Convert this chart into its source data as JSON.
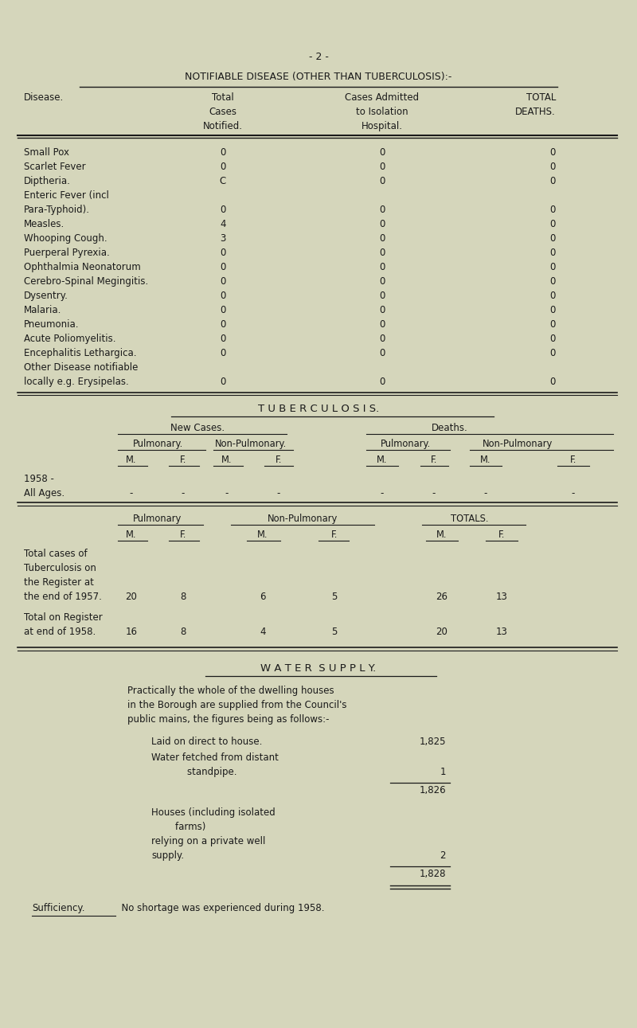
{
  "bg_color": "#d5d6bb",
  "text_color": "#1a1a1a",
  "page_num": "- 2 -",
  "section1_title": "NOTIFIABLE DISEASE (OTHER THAN TUBERCULOSIS):-",
  "diseases": [
    [
      "Small Pox",
      "0",
      "0",
      "0"
    ],
    [
      "Scarlet Fever",
      "0",
      "0",
      "0"
    ],
    [
      "Diptheria.",
      "C",
      "0",
      "0"
    ],
    [
      "Enteric Fever (incl",
      "",
      "",
      ""
    ],
    [
      "Para-Typhoid).",
      "0",
      "0",
      "0"
    ],
    [
      "Measles.",
      "4",
      "0",
      "0"
    ],
    [
      "Whooping Cough.",
      "3",
      "0",
      "0"
    ],
    [
      "Puerperal Pyrexia.",
      "0",
      "0",
      "0"
    ],
    [
      "Ophthalmia Neonatorum",
      "0",
      "0",
      "0"
    ],
    [
      "Cerebro-Spinal Megingitis.",
      "0",
      "0",
      "0"
    ],
    [
      "Dysentry.",
      "0",
      "0",
      "0"
    ],
    [
      "Malaria.",
      "0",
      "0",
      "0"
    ],
    [
      "Pneumonia.",
      "0",
      "0",
      "0"
    ],
    [
      "Acute Poliomyelitis.",
      "0",
      "0",
      "0"
    ],
    [
      "Encephalitis Lethargica.",
      "0",
      "0",
      "0"
    ],
    [
      "Other Disease notifiable",
      "",
      "",
      ""
    ],
    [
      "locally e.g. Erysipelas.",
      "0",
      "0",
      "0"
    ]
  ],
  "section2_title": "T U B E R C U L O S I S.",
  "tb_reg_row1_label_lines": [
    "Total cases of",
    "Tuberculosis on",
    "the Register at",
    "the end of 1957."
  ],
  "tb_reg_row1_vals": [
    "20",
    "8",
    "6",
    "5",
    "26",
    "13"
  ],
  "tb_reg_row2_label_lines": [
    "Total on Register",
    "at end of 1958."
  ],
  "tb_reg_row2_vals": [
    "16",
    "8",
    "4",
    "5",
    "20",
    "13"
  ],
  "water_title": "W A T E R  S U P P L Y.",
  "water_para_lines": [
    "Practically the whole of the dwelling houses",
    "in the Borough are supplied from the Council's",
    "public mains, the figures being as follows:-"
  ],
  "water_item1_label": "Laid on direct to house.",
  "water_item1_val": "1,825",
  "water_item2_lines": [
    "Water fetched from distant",
    "            standpipe."
  ],
  "water_item2_val": "1",
  "water_subtotal": "1,826",
  "water_item3_lines": [
    "Houses (including isolated",
    "        farms)",
    "relying on a private well",
    "supply."
  ],
  "water_item3_val": "2",
  "water_total": "1,828",
  "sufficiency_label": "Sufficiency.",
  "sufficiency_text": "  No shortage was experienced during 1958."
}
